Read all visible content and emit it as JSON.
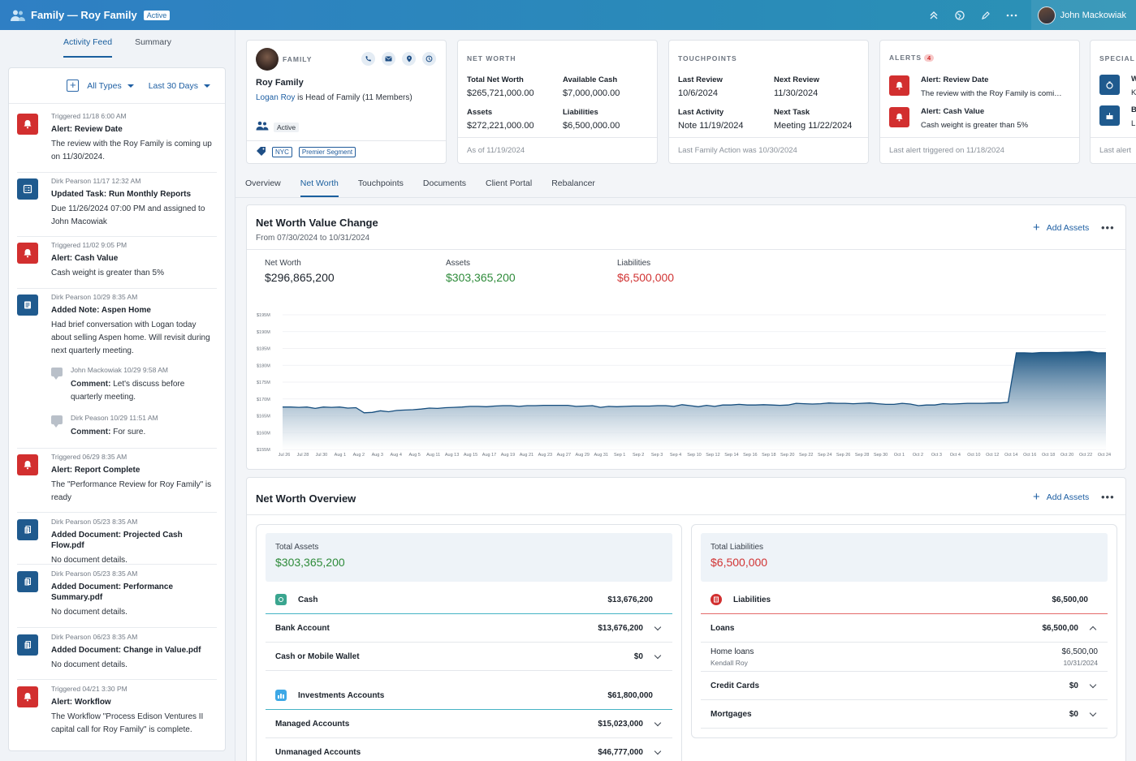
{
  "header": {
    "title": "Family — Roy Family",
    "status_badge": "Active",
    "user_name": "John Mackowiak"
  },
  "left_tabs": [
    {
      "label": "Activity Feed",
      "active": true
    },
    {
      "label": "Summary",
      "active": false
    }
  ],
  "filters": {
    "type": "All Types",
    "range": "Last 30 Days"
  },
  "feed": [
    {
      "icon": "bell-icon",
      "color": "red",
      "meta": "Triggered 11/18 6:00 AM",
      "title": "Alert: Review Date",
      "text": "The review with the Roy Family is coming up on 11/30/2024."
    },
    {
      "icon": "task-icon",
      "color": "blue",
      "meta": "Dirk Pearson 11/17 12:32 AM",
      "title": "Updated Task: Run Monthly Reports",
      "text": "Due 11/26/2024 07:00 PM and assigned to John Macowiak"
    },
    {
      "icon": "bell-icon",
      "color": "red",
      "meta": "Triggered 11/02 9:05 PM",
      "title": "Alert: Cash Value",
      "text": "Cash weight is greater than 5%"
    },
    {
      "icon": "note-icon",
      "color": "blue",
      "meta": "Dirk Pearson 10/29 8:35 AM",
      "title": "Added Note: Aspen Home",
      "text": "Had brief conversation with Logan today about selling Aspen home. Will revisit during next quarterly meeting."
    },
    {
      "icon": "bell-icon",
      "color": "red",
      "meta": "Triggered 06/29 8:35 AM",
      "title": "Alert: Report Complete",
      "text": "The \"Performance Review for Roy Family\" is ready"
    },
    {
      "icon": "document-icon",
      "color": "blue",
      "meta": "Dirk Pearson 05/23 8:35 AM",
      "title": "Added Document: Projected Cash Flow.pdf",
      "text": "No document details."
    },
    {
      "icon": "document-icon",
      "color": "blue",
      "meta": "Dirk Pearson 05/23 8:35 AM",
      "title": "Added Document: Performance Summary.pdf",
      "text": "No document details."
    },
    {
      "icon": "document-icon",
      "color": "blue",
      "meta": "Dirk Pearson 06/23 8:35 AM",
      "title": "Added Document: Change in Value.pdf",
      "text": "No document details."
    },
    {
      "icon": "bell-icon",
      "color": "red",
      "meta": "Triggered 04/21 3:30 PM",
      "title": "Alert: Workflow",
      "text": "The Workflow \"Process Edison Ventures II capital call for Roy Family\" is complete."
    }
  ],
  "comments": [
    {
      "meta": "John Mackowiak 10/29 9:58 AM",
      "label": "Comment:",
      "text": "Let's discuss before quarterly meeting."
    },
    {
      "meta": "Dirk Peason 10/29 11:51 AM",
      "label": "Comment:",
      "text": "For sure."
    }
  ],
  "family_card": {
    "label": "FAMILY",
    "name": "Roy Family",
    "head_link": "Logan Roy",
    "head_text": " is Head of Family (11 Members)",
    "status": "Active",
    "tags": [
      "NYC",
      "Premier Segment"
    ]
  },
  "net_worth_card": {
    "label": "NET WORTH",
    "total_label": "Total Net Worth",
    "total_value": "$265,721,000.00",
    "cash_label": "Available Cash",
    "cash_value": "$7,000,000.00",
    "assets_label": "Assets",
    "assets_value": "$272,221,000.00",
    "liab_label": "Liabilities",
    "liab_value": "$6,500,000.00",
    "footer": "As of 11/19/2024"
  },
  "touchpoints_card": {
    "label": "TOUCHPOINTS",
    "last_review_label": "Last Review",
    "last_review_value": "10/6/2024",
    "next_review_label": "Next Review",
    "next_review_value": "11/30/2024",
    "last_activity_label": "Last Activity",
    "last_activity_value": "Note 11/19/2024",
    "next_task_label": "Next Task",
    "next_task_value": "Meeting 11/22/2024",
    "footer": "Last Family Action was 10/30/2024"
  },
  "alerts_card": {
    "label": "ALERTS",
    "count": "4",
    "items": [
      {
        "title": "Alert: Review Date",
        "text": "The review with the Roy Family is comi…"
      },
      {
        "title": "Alert: Cash Value",
        "text": "Cash weight is greater than 5%"
      }
    ],
    "footer": "Last alert triggered on 11/18/2024"
  },
  "special_card": {
    "label": "SPECIAL I",
    "rows": [
      {
        "a": "W",
        "b": "K"
      },
      {
        "a": "B",
        "b": "L"
      }
    ],
    "footer": "Last alert"
  },
  "main_tabs": [
    {
      "label": "Overview",
      "active": false
    },
    {
      "label": "Net Worth",
      "active": true
    },
    {
      "label": "Touchpoints",
      "active": false
    },
    {
      "label": "Documents",
      "active": false
    },
    {
      "label": "Client Portal",
      "active": false
    },
    {
      "label": "Rebalancer",
      "active": false
    }
  ],
  "nw_chart_card": {
    "title": "Net Worth Value Change",
    "subtitle": "From 07/30/2024 to 10/31/2024",
    "add_label": "Add Assets",
    "stats": [
      {
        "label": "Net Worth",
        "value": "$296,865,200",
        "color": "#1c232c"
      },
      {
        "label": "Assets",
        "value": "$303,365,200",
        "color": "#2e8b3a"
      },
      {
        "label": "Liabilities",
        "value": "$6,500,000",
        "color": "#d13434"
      }
    ]
  },
  "chart_data": {
    "type": "area",
    "y_ticks": [
      "$195M",
      "$190M",
      "$185M",
      "$180M",
      "$175M",
      "$170M",
      "$165M",
      "$160M",
      "$155M"
    ],
    "ylim": [
      155,
      195
    ],
    "x_ticks": [
      "Jul 26",
      "Jul 28",
      "Jul 30",
      "Aug 1",
      "Aug 2",
      "Aug 3",
      "Aug 4",
      "Aug 5",
      "Aug 11",
      "Aug 13",
      "Aug 15",
      "Aug 17",
      "Aug 19",
      "Aug 21",
      "Aug 23",
      "Aug 27",
      "Aug 29",
      "Aug 31",
      "Sep 1",
      "Sep 2",
      "Sep 3",
      "Sep 4",
      "Sep 10",
      "Sep 12",
      "Sep 14",
      "Sep 16",
      "Sep 18",
      "Sep 20",
      "Sep 22",
      "Sep 24",
      "Sep 26",
      "Sep 28",
      "Sep 30",
      "Oct 1",
      "Oct 2",
      "Oct 3",
      "Oct 4",
      "Oct 10",
      "Oct 12",
      "Oct 14",
      "Oct 16",
      "Oct 18",
      "Oct 20",
      "Oct 22",
      "Oct 24"
    ],
    "values": [
      167.6,
      167.6,
      167.5,
      167.6,
      167.2,
      167.6,
      167.5,
      167.6,
      167.3,
      167.4,
      165.9,
      166.0,
      166.5,
      166.2,
      166.6,
      166.7,
      166.8,
      167.0,
      167.3,
      167.2,
      167.4,
      167.5,
      167.6,
      167.8,
      167.8,
      167.7,
      167.9,
      168.0,
      168.0,
      167.8,
      168.0,
      168.0,
      168.1,
      168.1,
      168.1,
      168.1,
      167.8,
      167.9,
      168.0,
      167.5,
      167.8,
      167.7,
      167.8,
      167.9,
      167.9,
      167.9,
      168.0,
      168.0,
      167.8,
      168.3,
      168.0,
      167.7,
      168.1,
      167.8,
      168.2,
      168.2,
      168.4,
      168.2,
      168.2,
      168.3,
      168.2,
      168.1,
      168.2,
      168.7,
      168.6,
      168.5,
      168.6,
      168.8,
      168.7,
      168.7,
      168.6,
      168.7,
      168.8,
      168.6,
      168.4,
      168.4,
      168.7,
      168.5,
      168.0,
      168.2,
      168.2,
      168.6,
      168.5,
      168.6,
      168.7,
      168.7,
      168.7,
      168.8,
      168.8,
      169.0,
      183.7,
      183.7,
      183.6,
      183.8,
      183.8,
      183.8,
      183.9,
      183.9,
      184.0,
      184.1,
      183.7,
      183.7
    ]
  },
  "overview_card": {
    "title": "Net Worth Overview",
    "add_label": "Add Assets",
    "assets": {
      "head_label": "Total Assets",
      "head_value": "$303,365,200",
      "rows": [
        {
          "kind": "category",
          "label": "Cash",
          "amount": "$13,676,200",
          "color": "#3aa58f"
        },
        {
          "kind": "item",
          "label": "Bank Account",
          "amount": "$13,676,200"
        },
        {
          "kind": "item",
          "label": "Cash or Mobile Wallet",
          "amount": "$0"
        },
        {
          "kind": "category",
          "label": "Investments Accounts",
          "amount": "$61,800,000",
          "color": "#3da8e6"
        },
        {
          "kind": "item",
          "label": "Managed Accounts",
          "amount": "$15,023,000"
        },
        {
          "kind": "item",
          "label": "Unmanaged Accounts",
          "amount": "$46,777,000"
        }
      ]
    },
    "liabilities": {
      "head_label": "Total Liabilities",
      "head_value": "$6,500,000",
      "category_label": "Liabilities",
      "category_amount": "$6,500,00",
      "loans_label": "Loans",
      "loans_amount": "$6,500,00",
      "home_label": "Home loans",
      "home_amount": "$6,500,00",
      "home_owner": "Kendall Roy",
      "home_date": "10/31/2024",
      "credit_label": "Credit Cards",
      "credit_amount": "$0",
      "mort_label": "Mortgages",
      "mort_amount": "$0"
    }
  }
}
